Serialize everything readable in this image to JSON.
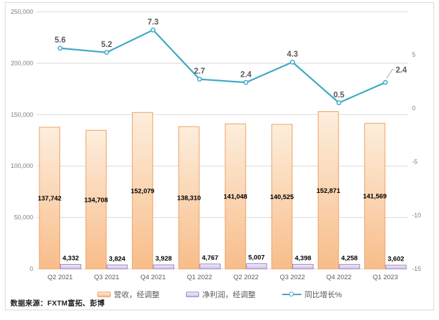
{
  "frame": {
    "background": "#ffffff",
    "border_color": "#d9d9d9"
  },
  "source_note": {
    "text": "数据来源：FXTM富拓、彭博"
  },
  "legend": {
    "items": [
      {
        "label": "营收，经调整",
        "swatch": "bar-orange"
      },
      {
        "label": "净利润，经调整",
        "swatch": "bar-purple"
      },
      {
        "label": "同比增长%",
        "swatch": "line-teal"
      }
    ]
  },
  "colors": {
    "revenue_fill_top": "#fdeedd",
    "revenue_fill_bottom": "#f8bd8a",
    "revenue_border": "#eda162",
    "profit_fill_top": "#f2eef8",
    "profit_fill_bottom": "#cebfe6",
    "profit_border": "#9d85c2",
    "growth_line": "#3fa9c5",
    "marker_fill": "#eef8fb",
    "gridline": "#d9d9d9",
    "axis_text": "#808080",
    "label_text": "#595959",
    "bar_label_text": "#000000",
    "leader_line": "#ababab"
  },
  "chart_data": {
    "type": "combo: grouped bar + line",
    "categories": [
      "Q2 2021",
      "Q3 2021",
      "Q4 2021",
      "Q1 2022",
      "Q2 2022",
      "Q3 2022",
      "Q4 2022",
      "Q1 2023"
    ],
    "series": [
      {
        "name": "营收，经调整",
        "type": "bar",
        "axis": "left",
        "values": [
          137742,
          134708,
          152079,
          138310,
          141048,
          140525,
          152871,
          141569
        ],
        "labels": [
          "137,742",
          "134,708",
          "152,079",
          "138,310",
          "141,048",
          "140,525",
          "152,871",
          "141,569"
        ]
      },
      {
        "name": "净利润，经调整",
        "type": "bar",
        "axis": "left",
        "values": [
          4332,
          3824,
          3928,
          4767,
          5007,
          4398,
          4258,
          3602
        ],
        "labels": [
          "4,332",
          "3,824",
          "3,928",
          "4,767",
          "5,007",
          "4,398",
          "4,258",
          "3,602"
        ]
      },
      {
        "name": "同比增长%",
        "type": "line",
        "axis": "right",
        "values": [
          5.6,
          5.2,
          7.3,
          2.7,
          2.4,
          4.3,
          0.5,
          2.4
        ],
        "labels": [
          "5.6",
          "5.2",
          "7.3",
          "2.7",
          "2.4",
          "4.3",
          "0.5",
          "2.4"
        ]
      }
    ],
    "left_axis": {
      "min": 0,
      "max": 250000,
      "step": 50000,
      "ticks": [
        0,
        50000,
        100000,
        150000,
        200000,
        250000
      ],
      "tick_labels": [
        "0",
        "50,000",
        "100,000",
        "150,000",
        "200,000",
        "250,000"
      ]
    },
    "right_axis": {
      "min": -15,
      "max": 9,
      "step": 5,
      "ticks": [
        -15,
        -10,
        -5,
        0,
        5
      ],
      "tick_labels": [
        "-15",
        "-10",
        "-5",
        "0",
        "5"
      ]
    },
    "grid": true,
    "legend_position": "bottom",
    "title": ""
  }
}
